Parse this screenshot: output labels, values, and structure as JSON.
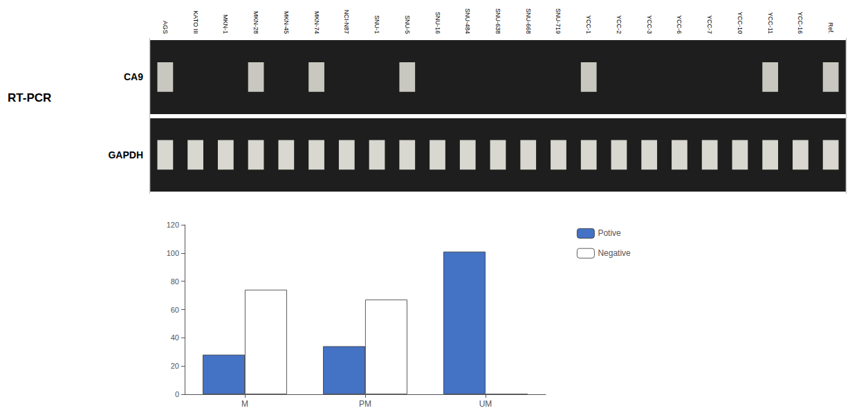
{
  "chart_data": [
    {
      "type": "gel",
      "title": "RT-PCR",
      "categories": [
        "AGS",
        "KATO III",
        "MKN-1",
        "MKN-28",
        "MKN-45",
        "MKN-74",
        "NCI-N87",
        "SNU-1",
        "SNU-5",
        "SNU-16",
        "SNU-484",
        "SNU-638",
        "SNU-668",
        "SNU-719",
        "YCC-1",
        "YCC-2",
        "YCC-3",
        "YCC-6",
        "YCC-7",
        "YCC-10",
        "YCC-11",
        "YCC-16",
        "Ref."
      ],
      "series": [
        {
          "name": "CA9",
          "color": "#c8c8c0",
          "values": [
            1,
            0,
            0,
            1,
            0,
            1,
            0,
            0,
            1,
            0,
            0,
            0,
            0,
            0,
            1,
            0,
            0,
            0,
            0,
            0,
            1,
            0,
            1
          ]
        },
        {
          "name": "GAPDH",
          "color": "#d8d8d0",
          "values": [
            1,
            1,
            1,
            1,
            1,
            1,
            1,
            1,
            1,
            1,
            1,
            1,
            1,
            1,
            1,
            1,
            1,
            1,
            1,
            1,
            1,
            1,
            1
          ]
        }
      ]
    },
    {
      "type": "bar",
      "categories": [
        "M",
        "PM",
        "UM"
      ],
      "series": [
        {
          "name": "Potive",
          "color": "#4472C4",
          "values": [
            28,
            34,
            101
          ]
        },
        {
          "name": "Negative",
          "color": "#FFFFFF",
          "values": [
            74,
            67,
            0
          ]
        }
      ],
      "ylim": [
        0,
        120
      ],
      "yticks": [
        0,
        20,
        40,
        60,
        80,
        100,
        120
      ],
      "grid": false,
      "legend": "right"
    }
  ]
}
